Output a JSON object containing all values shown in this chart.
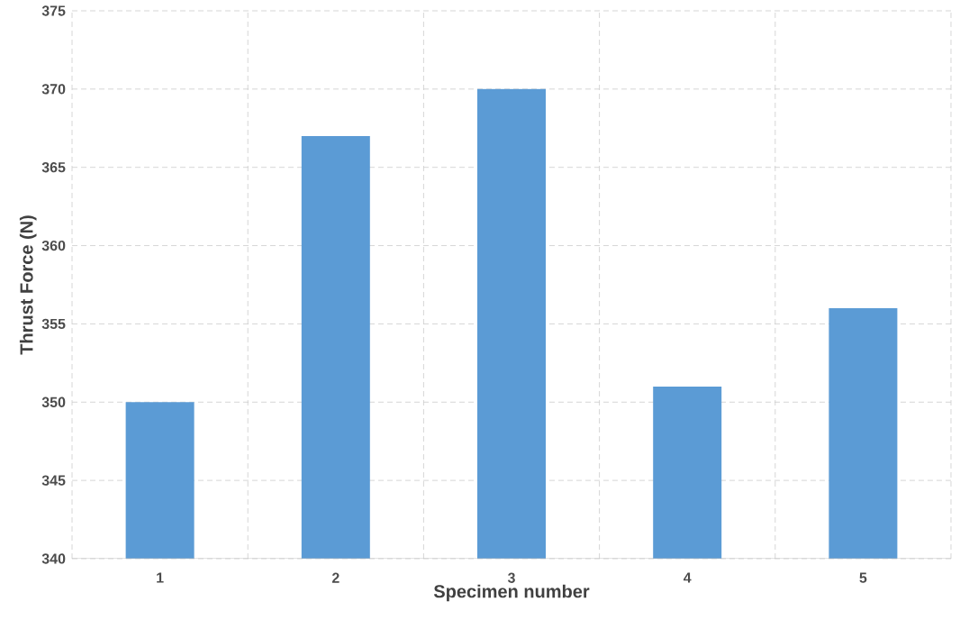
{
  "chart_data": {
    "type": "bar",
    "xlabel": "Specimen number",
    "ylabel": "Thrust Force (N)",
    "categories": [
      "1",
      "2",
      "3",
      "4",
      "5"
    ],
    "values": [
      350,
      367,
      370,
      351,
      356
    ],
    "color": "#5b9bd5",
    "ylim": [
      340,
      375
    ],
    "yticks": [
      340,
      345,
      350,
      355,
      360,
      365,
      370,
      375
    ],
    "grid": true
  }
}
